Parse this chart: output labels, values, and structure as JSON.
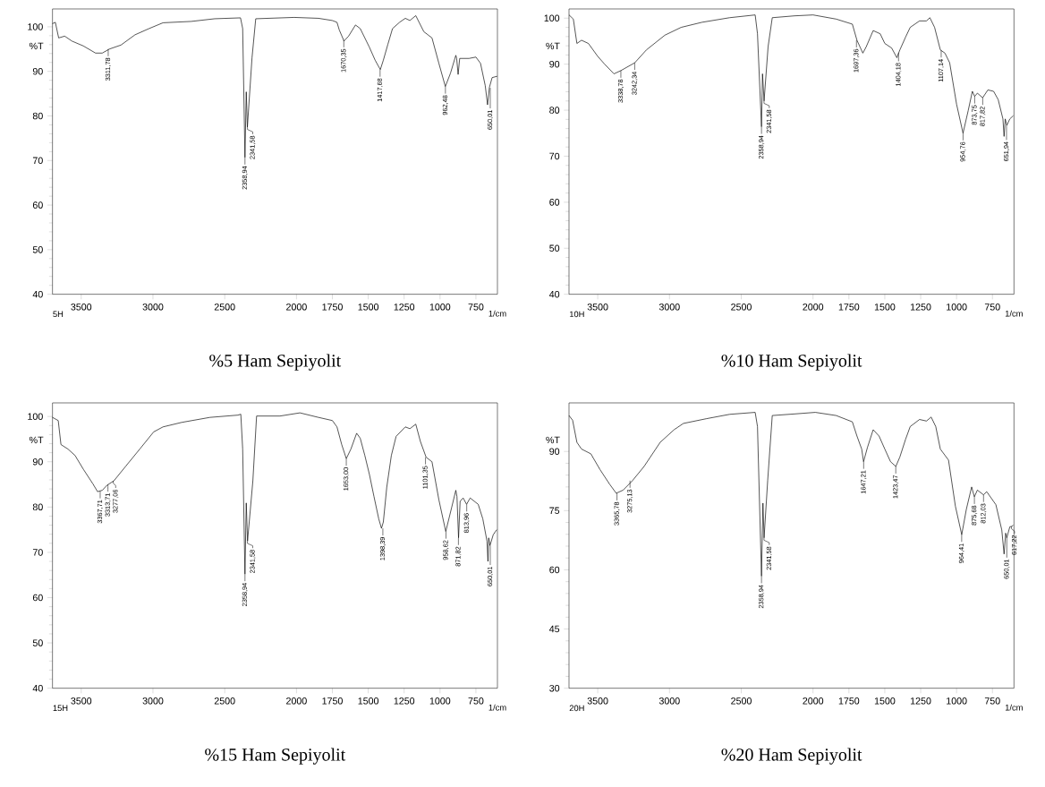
{
  "chart_data": [
    {
      "type": "line",
      "title": "%5 Ham Sepiyolit",
      "xlabel": "1/cm",
      "ylabel": "%T",
      "xlim": [
        3700,
        600
      ],
      "ylim": [
        40,
        104
      ],
      "xticks": [
        3500,
        3000,
        2500,
        2000,
        1750,
        1500,
        1250,
        1000,
        750
      ],
      "yticks": [
        40,
        50,
        60,
        70,
        80,
        90,
        100
      ],
      "x": [
        3700,
        3680,
        3657,
        3615,
        3565,
        3485,
        3400,
        3353,
        3304,
        3223,
        3125,
        3027,
        2930,
        2734,
        2570,
        2390,
        2375,
        2359,
        2350,
        2342,
        2310,
        2284,
        2016,
        1847,
        1750,
        1718,
        1702,
        1669,
        1637,
        1589,
        1556,
        1524,
        1492,
        1452,
        1416,
        1395,
        1363,
        1331,
        1282,
        1242,
        1210,
        1169,
        1113,
        1056,
        1008,
        963,
        927,
        890,
        884,
        874,
        863,
        798,
        750,
        718,
        685,
        669,
        656,
        637,
        602
      ],
      "series": [
        {
          "color": "#000000",
          "values": [
            100.7,
            101,
            97.5,
            97.9,
            96.8,
            95.7,
            94.1,
            94.1,
            95,
            95.9,
            98.2,
            99.6,
            100.9,
            101.2,
            101.8,
            102,
            99.6,
            70.7,
            85.4,
            77.5,
            93,
            101.8,
            102.1,
            101.9,
            101.4,
            101,
            99.3,
            96.8,
            97.9,
            100.4,
            99.6,
            97.5,
            95.4,
            92.5,
            90.4,
            92.5,
            96.1,
            99.6,
            101,
            101.9,
            101.4,
            102.5,
            98.9,
            97.5,
            91.8,
            86.6,
            89.6,
            93.6,
            92.9,
            89.3,
            92.9,
            92.9,
            93.2,
            91.8,
            86.8,
            82.5,
            86.4,
            88.6,
            88.9
          ]
        }
      ],
      "annotations": [
        "5H",
        {
          "text": "3311,78",
          "x": 3311.78,
          "y": 95
        },
        {
          "text": "2358,94",
          "x": 2358.94,
          "y": 70.7
        },
        {
          "text": "2341,58",
          "x": 2341.58,
          "y": 77.5
        },
        {
          "text": "1670,35",
          "x": 1670.35,
          "y": 97
        },
        {
          "text": "1417,68",
          "x": 1417.68,
          "y": 90.4
        },
        {
          "text": "962,48",
          "x": 962.48,
          "y": 86.6
        },
        {
          "text": "650,01",
          "x": 650.01,
          "y": 86.3
        }
      ]
    },
    {
      "type": "line",
      "title": "%10 Ham Sepiyolit",
      "xlabel": "1/cm",
      "ylabel": "%T",
      "xlim": [
        3700,
        600
      ],
      "ylim": [
        40,
        102
      ],
      "xticks": [
        3500,
        3000,
        2500,
        2000,
        1750,
        1500,
        1250,
        1000,
        750
      ],
      "yticks": [
        40,
        50,
        60,
        70,
        80,
        90,
        100
      ],
      "x": [
        3700,
        3670,
        3645,
        3613,
        3565,
        3500,
        3452,
        3387,
        3339,
        3242,
        3161,
        3032,
        2919,
        2774,
        2581,
        2403,
        2387,
        2359,
        2352,
        2341,
        2313,
        2284,
        2129,
        2000,
        1839,
        1726,
        1694,
        1653,
        1629,
        1581,
        1532,
        1500,
        1452,
        1416,
        1395,
        1355,
        1323,
        1258,
        1210,
        1186,
        1153,
        1113,
        1081,
        1048,
        1000,
        955,
        919,
        890,
        874,
        855,
        818,
        782,
        742,
        710,
        677,
        669,
        661,
        650,
        629,
        605
      ],
      "series": [
        {
          "color": "#000000",
          "values": [
            100.7,
            99.8,
            94.5,
            95.2,
            94.5,
            91.7,
            90,
            87.9,
            88.6,
            90.3,
            93.1,
            96.3,
            98,
            99.1,
            100.1,
            100.7,
            96.6,
            76.4,
            87.9,
            82,
            93.8,
            100.1,
            100.5,
            100.7,
            99.8,
            98.7,
            95.2,
            92.4,
            93.8,
            97.3,
            96.6,
            94.5,
            93.5,
            91.4,
            93.1,
            95.9,
            98,
            99.4,
            99.4,
            100.1,
            98,
            93.1,
            92.4,
            90.3,
            81.3,
            75,
            79.9,
            84.1,
            83,
            83.7,
            82.7,
            84.4,
            84.1,
            82.3,
            78.1,
            74.3,
            78.1,
            76.7,
            78.1,
            78.8
          ]
        }
      ],
      "annotations": [
        "10H",
        {
          "text": "3338,78",
          "x": 3338.78,
          "y": 88.6
        },
        {
          "text": "3242,34",
          "x": 3242.34,
          "y": 90.3
        },
        {
          "text": "2358,94",
          "x": 2358.94,
          "y": 76.4
        },
        {
          "text": "2341,58",
          "x": 2341.58,
          "y": 82
        },
        {
          "text": "1697,36",
          "x": 1697.36,
          "y": 95.2
        },
        {
          "text": "1404,18",
          "x": 1404.18,
          "y": 92.5
        },
        {
          "text": "1107,14",
          "x": 1107.14,
          "y": 93
        },
        {
          "text": "954,76",
          "x": 954.76,
          "y": 75
        },
        {
          "text": "873,75",
          "x": 873.75,
          "y": 83
        },
        {
          "text": "817,82",
          "x": 817.82,
          "y": 82.7
        },
        {
          "text": "651,94",
          "x": 651.94,
          "y": 76.7
        }
      ]
    },
    {
      "type": "line",
      "title": "%15 Ham Sepiyolit",
      "xlabel": "1/cm",
      "ylabel": "%T",
      "xlim": [
        3700,
        600
      ],
      "ylim": [
        40,
        103
      ],
      "xticks": [
        3500,
        3000,
        2500,
        2000,
        1750,
        1500,
        1250,
        1000,
        750
      ],
      "yticks": [
        40,
        50,
        60,
        70,
        80,
        90,
        100
      ],
      "x": [
        3700,
        3660,
        3641,
        3592,
        3543,
        3484,
        3418,
        3386,
        3353,
        3321,
        3272,
        3190,
        3092,
        2995,
        2930,
        2799,
        2603,
        2408,
        2388,
        2375,
        2359,
        2350,
        2341,
        2304,
        2278,
        2115,
        1976,
        1847,
        1750,
        1718,
        1685,
        1653,
        1621,
        1581,
        1556,
        1524,
        1492,
        1460,
        1427,
        1408,
        1395,
        1371,
        1339,
        1306,
        1242,
        1210,
        1169,
        1137,
        1097,
        1056,
        1008,
        960,
        919,
        890,
        882,
        871,
        860,
        839,
        815,
        790,
        734,
        702,
        673,
        666,
        661,
        652,
        629,
        605
      ],
      "series": [
        {
          "color": "#000000",
          "values": [
            99.8,
            99.1,
            93.8,
            92.8,
            91.4,
            88.3,
            85.1,
            83.4,
            83.7,
            84.8,
            85.8,
            89,
            92.8,
            96.6,
            97.7,
            98.7,
            99.8,
            100.3,
            100.5,
            92.8,
            65.2,
            80.9,
            72.5,
            85.8,
            100.1,
            100.1,
            100.8,
            99.8,
            99.1,
            97.7,
            93.8,
            90.7,
            92.8,
            96.3,
            95.2,
            91.4,
            87.2,
            82.3,
            77.4,
            75.3,
            76.7,
            84.4,
            91.4,
            95.6,
            97.7,
            97.3,
            98.3,
            94.5,
            91,
            90,
            81.6,
            74.6,
            79.9,
            83.7,
            82.3,
            73.2,
            81.3,
            82,
            80.6,
            82,
            80.6,
            77.4,
            72.5,
            68,
            73.2,
            71.5,
            73.9,
            75
          ]
        }
      ],
      "annotations": [
        "15H",
        {
          "text": "3367,71",
          "x": 3367.71,
          "y": 83.5
        },
        {
          "text": "3313,71",
          "x": 3313.71,
          "y": 85
        },
        {
          "text": "3277,06",
          "x": 3277.06,
          "y": 85.8
        },
        {
          "text": "2358,94",
          "x": 2358.94,
          "y": 65.2
        },
        {
          "text": "2341,58",
          "x": 2341.58,
          "y": 72.5
        },
        {
          "text": "1653,00",
          "x": 1653.0,
          "y": 90.7
        },
        {
          "text": "1398,39",
          "x": 1398.39,
          "y": 75.3
        },
        {
          "text": "1101,35",
          "x": 1101.35,
          "y": 91
        },
        {
          "text": "958,62",
          "x": 958.62,
          "y": 74.6
        },
        {
          "text": "871,82",
          "x": 871.82,
          "y": 73.2
        },
        {
          "text": "813,96",
          "x": 813.96,
          "y": 80.6
        },
        {
          "text": "650,01",
          "x": 650.01,
          "y": 71.5
        }
      ]
    },
    {
      "type": "line",
      "title": "%20 Ham Sepiyolit",
      "xlabel": "1/cm",
      "ylabel": "%T",
      "xlim": [
        3700,
        600
      ],
      "ylim": [
        30,
        102.3
      ],
      "xticks": [
        3500,
        3000,
        2500,
        2000,
        1750,
        1500,
        1250,
        1000,
        750
      ],
      "yticks": [
        30,
        45,
        60,
        75,
        90
      ],
      "x": [
        3700,
        3675,
        3645,
        3613,
        3548,
        3484,
        3419,
        3371,
        3323,
        3258,
        3177,
        3065,
        2968,
        2903,
        2742,
        2581,
        2403,
        2387,
        2359,
        2349,
        2341,
        2316,
        2284,
        2129,
        1984,
        1839,
        1726,
        1694,
        1661,
        1648,
        1621,
        1581,
        1540,
        1500,
        1460,
        1423,
        1395,
        1355,
        1323,
        1258,
        1210,
        1177,
        1145,
        1113,
        1056,
        1008,
        964,
        932,
        895,
        876,
        855,
        812,
        790,
        726,
        685,
        669,
        658,
        650,
        629,
        617,
        605
      ],
      "series": [
        {
          "color": "#000000",
          "values": [
            99.1,
            97.9,
            92.3,
            90.6,
            89.4,
            85.4,
            81.8,
            79.4,
            80.2,
            82.6,
            86.2,
            92.3,
            95.5,
            97.1,
            98.3,
            99.4,
            99.9,
            96.3,
            58.4,
            76.9,
            68.1,
            82.6,
            99.1,
            99.5,
            99.9,
            99.1,
            97.5,
            93.9,
            90.6,
            87.4,
            91,
            95.5,
            93.9,
            90.6,
            87.4,
            86.2,
            88.6,
            93.1,
            96.3,
            98.1,
            97.7,
            98.7,
            96.3,
            90.6,
            87.8,
            76.1,
            68.9,
            75.3,
            81,
            78.5,
            80.2,
            79,
            79.8,
            76.5,
            70.1,
            64,
            69.3,
            68.1,
            70.9,
            71,
            71.3
          ]
        }
      ],
      "annotations": [
        "20H",
        {
          "text": "3365,78",
          "x": 3365.78,
          "y": 79.4
        },
        {
          "text": "3275,13",
          "x": 3275.13,
          "y": 82.6
        },
        {
          "text": "2358,94",
          "x": 2358.94,
          "y": 58.4
        },
        {
          "text": "2341,58",
          "x": 2341.58,
          "y": 68.1
        },
        {
          "text": "1647,21",
          "x": 1647.21,
          "y": 87.4
        },
        {
          "text": "1423,47",
          "x": 1423.47,
          "y": 86.2
        },
        {
          "text": "964,41",
          "x": 964.41,
          "y": 68.9
        },
        {
          "text": "875,68",
          "x": 875.68,
          "y": 78.5
        },
        {
          "text": "812,03",
          "x": 812.03,
          "y": 79
        },
        {
          "text": "650,01",
          "x": 650.01,
          "y": 68.1
        },
        {
          "text": "617,22",
          "x": 617.22,
          "y": 71
        }
      ]
    }
  ]
}
